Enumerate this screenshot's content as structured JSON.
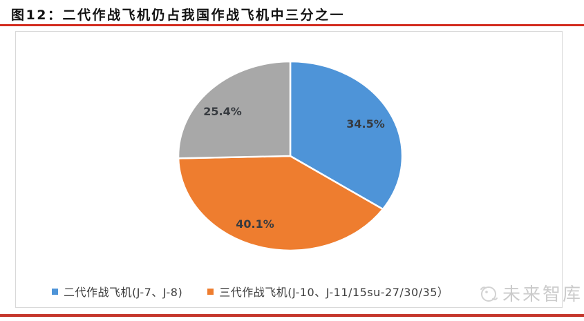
{
  "header": {
    "title": "图12：二代作战飞机仍占我国作战飞机中三分之一"
  },
  "colors": {
    "title_rule_red": "#D22B1E",
    "bottom_rule_red": "#C5372C",
    "panel_border": "#D9D9D9",
    "label_text": "#363A3F"
  },
  "chart_data": {
    "type": "pie",
    "title": "图12：二代作战飞机仍占我国作战飞机中三分之一",
    "start_angle_deg": 0,
    "clockwise": true,
    "legend_position": "bottom",
    "slices": [
      {
        "label": "34.5%",
        "value": 34.5,
        "color": "#4E94D8"
      },
      {
        "label": "40.1%",
        "value": 40.1,
        "color": "#EE7D2F"
      },
      {
        "label": "25.4%",
        "value": 25.4,
        "color": "#A8A8A8"
      }
    ],
    "legend": [
      {
        "label": "二代作战飞机(J-7、J-8)",
        "color": "#4E94D8"
      },
      {
        "label": "三代作战飞机(J-10、J-11/15su-27/30/35）",
        "color": "#EE7D2F"
      }
    ]
  },
  "watermark": {
    "text": "未来智库"
  }
}
